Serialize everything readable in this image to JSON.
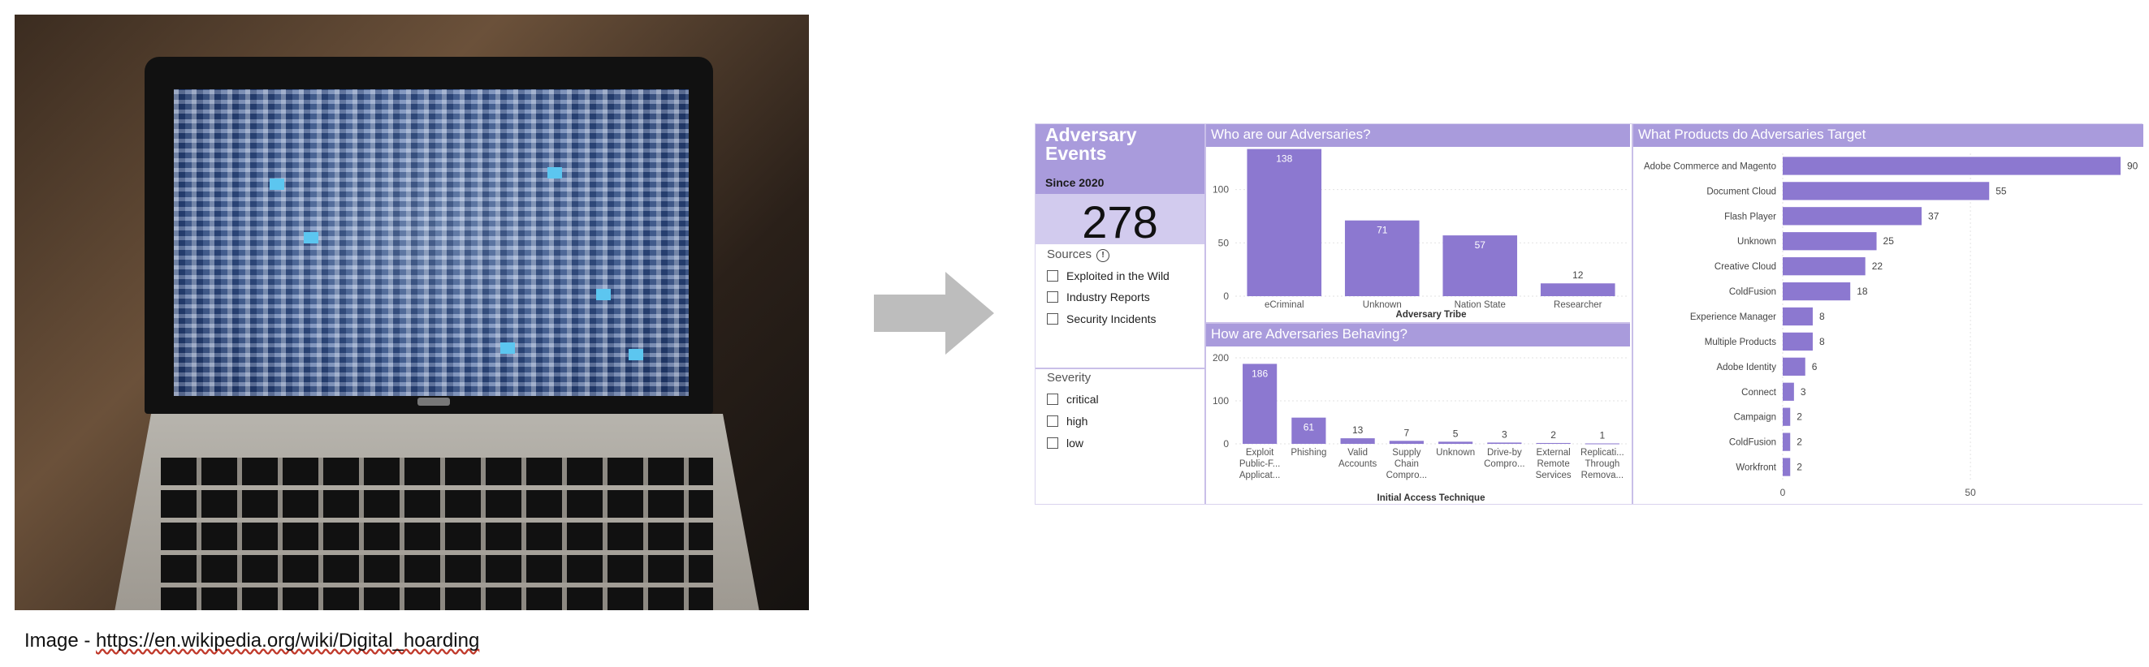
{
  "caption": {
    "prefix": "Image - ",
    "url": "https://en.wikipedia.org/wiki/Digital_hoarding"
  },
  "colors": {
    "bar": "#8c78d0",
    "header": "#a99bdc",
    "count_bg": "#d2cbee",
    "arrow": "#bdbdbd"
  },
  "icons": {
    "arrow": "right-arrow-icon",
    "info": "info-icon"
  },
  "dashboard": {
    "title": "Adversary Events",
    "subtitle": "Since 2020",
    "total": "278",
    "sources": {
      "label": "Sources",
      "info_glyph": "!",
      "options": [
        "Exploited in the Wild",
        "Industry Reports",
        "Security Incidents"
      ]
    },
    "severity": {
      "label": "Severity",
      "options": [
        "critical",
        "high",
        "low"
      ]
    }
  },
  "chart_data": [
    {
      "type": "bar",
      "title": "Who are our Adversaries?",
      "xlabel": "Adversary Tribe",
      "ylabel": "",
      "categories": [
        "eCriminal",
        "Unknown",
        "Nation State",
        "Researcher"
      ],
      "values": [
        138,
        71,
        57,
        12
      ],
      "y_ticks": [
        0,
        50,
        100
      ],
      "ylim": [
        0,
        140
      ],
      "grid": true
    },
    {
      "type": "bar",
      "title": "How are Adversaries Behaving?",
      "xlabel": "Initial Access Technique",
      "ylabel": "",
      "categories": [
        [
          "Exploit",
          "Public-F...",
          "Applicat..."
        ],
        [
          "Phishing"
        ],
        [
          "Valid",
          "Accounts"
        ],
        [
          "Supply",
          "Chain",
          "Compro..."
        ],
        [
          "Unknown"
        ],
        [
          "Drive-by",
          "Compro..."
        ],
        [
          "External",
          "Remote",
          "Services"
        ],
        [
          "Replicati...",
          "Through",
          "Remova..."
        ]
      ],
      "values": [
        186,
        61,
        13,
        7,
        5,
        3,
        2,
        1
      ],
      "y_ticks": [
        0,
        100,
        200
      ],
      "ylim": [
        0,
        200
      ],
      "grid": true
    },
    {
      "type": "bar",
      "orientation": "horizontal",
      "title": "What Products do Adversaries Target",
      "xlabel": "",
      "ylabel": "",
      "categories": [
        "Adobe Commerce and Magento",
        "Document Cloud",
        "Flash Player",
        "Unknown",
        "Creative Cloud",
        "ColdFusion",
        "Experience Manager",
        "Multiple Products",
        "Adobe Identity",
        "Connect",
        "Campaign",
        "ColdFusion",
        "Workfront"
      ],
      "values": [
        90,
        55,
        37,
        25,
        22,
        18,
        8,
        8,
        6,
        3,
        2,
        2,
        2
      ],
      "x_ticks": [
        0,
        50
      ],
      "xlim": [
        0,
        90
      ],
      "grid": true
    }
  ]
}
